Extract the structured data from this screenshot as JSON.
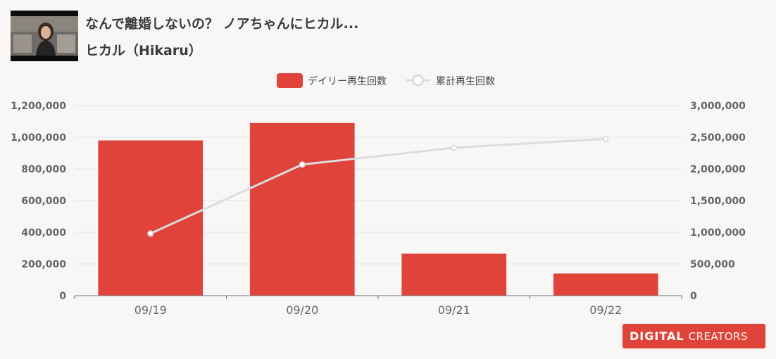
{
  "header": {
    "title": "なんで離婚しないの？ ノアちゃんにヒカル...",
    "channel": "ヒカル（Hikaru）"
  },
  "logo": {
    "main": "DIGITAL",
    "sub": "CREATORS"
  },
  "colors": {
    "bar": "#e0433a",
    "line": "#dcdcdc",
    "grid": "#dde3ef",
    "axis_text": "#666666",
    "background": "#f8f7f5"
  },
  "chart_data": {
    "type": "bar",
    "categories": [
      "09/19",
      "09/20",
      "09/21",
      "09/22"
    ],
    "series": [
      {
        "name": "デイリー再生回数",
        "type": "bar",
        "axis": "left",
        "values": [
          980000,
          1090000,
          265000,
          140000
        ]
      },
      {
        "name": "累計再生回数",
        "type": "line",
        "axis": "right",
        "values": [
          980000,
          2070000,
          2335000,
          2475000
        ]
      }
    ],
    "y_left": {
      "lim": [
        0,
        1200000
      ],
      "ticks": [
        "0",
        "200,000",
        "400,000",
        "600,000",
        "800,000",
        "1,000,000",
        "1,200,000"
      ]
    },
    "y_right": {
      "lim": [
        0,
        3000000
      ],
      "ticks": [
        "0",
        "500,000",
        "1,000,000",
        "1,500,000",
        "2,000,000",
        "2,500,000",
        "3,000,000"
      ]
    },
    "grid": true,
    "legend": "top-center"
  }
}
